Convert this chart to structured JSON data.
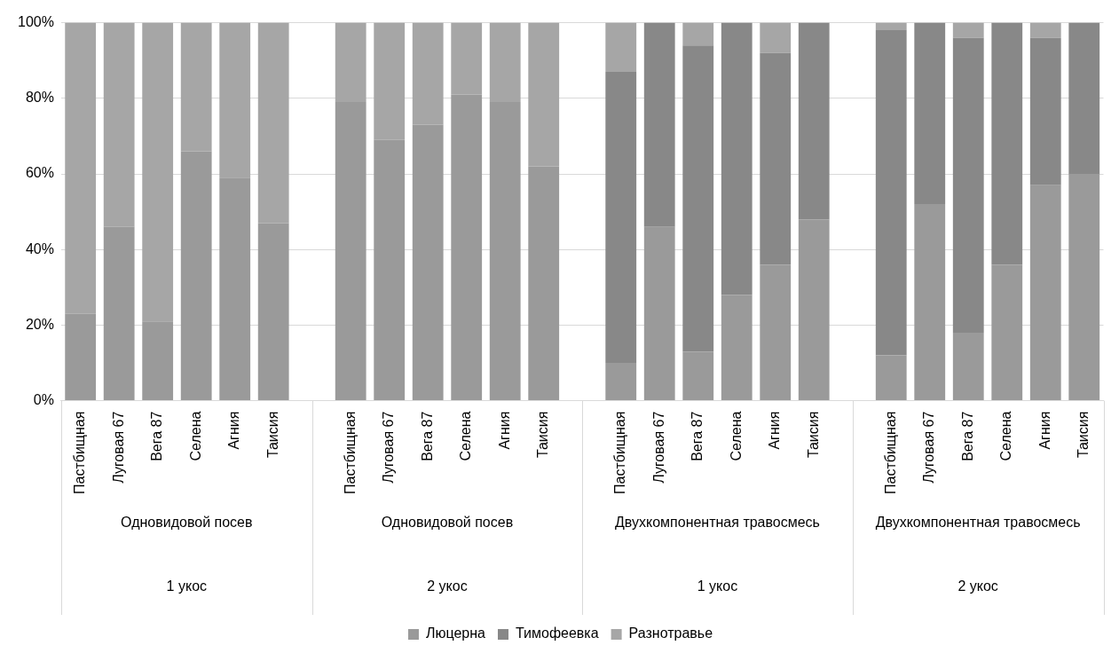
{
  "chart_data": {
    "type": "bar",
    "stacked": true,
    "categories": [
      "Пастбищная",
      "Луговая 67",
      "Вега 87",
      "Селена",
      "Агния",
      "Таисия",
      null,
      "Пастбищная",
      "Луговая 67",
      "Вега 87",
      "Селена",
      "Агния",
      "Таисия",
      null,
      "Пастбищная",
      "Луговая 67",
      "Вега 87",
      "Селена",
      "Агния",
      "Таисия",
      null,
      "Пастбищная",
      "Луговая 67",
      "Вега 87",
      "Селена",
      "Агния",
      "Таисия"
    ],
    "series": [
      {
        "name": "Люцерна",
        "color": "#9a9a9a",
        "values": [
          23,
          46,
          21,
          66,
          59,
          47,
          null,
          79,
          69,
          73,
          81,
          79,
          62,
          null,
          10,
          46,
          13,
          28,
          36,
          48,
          null,
          12,
          52,
          18,
          36,
          57,
          60
        ]
      },
      {
        "name": "Тимофеевка",
        "color": "#888888",
        "values": [
          0,
          0,
          0,
          0,
          0,
          0,
          null,
          0,
          0,
          0,
          0,
          0,
          0,
          null,
          77,
          54,
          81,
          72,
          56,
          52,
          null,
          86,
          48,
          78,
          64,
          39,
          40
        ]
      },
      {
        "name": "Разнотравье",
        "color": "#a6a6a6",
        "values": [
          77,
          54,
          79,
          34,
          41,
          53,
          null,
          21,
          31,
          27,
          19,
          21,
          38,
          null,
          13,
          0,
          6,
          0,
          8,
          0,
          null,
          2,
          0,
          4,
          0,
          4,
          0
        ]
      }
    ],
    "ylim": [
      0,
      100
    ],
    "yticks": [
      {
        "value": 0,
        "label": "0%"
      },
      {
        "value": 20,
        "label": "20%"
      },
      {
        "value": 40,
        "label": "40%"
      },
      {
        "value": 60,
        "label": "60%"
      },
      {
        "value": 80,
        "label": "80%"
      },
      {
        "value": 100,
        "label": "100%"
      }
    ],
    "grid": "y",
    "legend": "bottom",
    "annotations": [
      "Одновидовой посев",
      "Одновидовой посев",
      "Двухкомпонентная травосмесь",
      "Двухкомпонентная травосмесь",
      "1 укос",
      "2 укос",
      "1 укос",
      "2 укос"
    ]
  }
}
